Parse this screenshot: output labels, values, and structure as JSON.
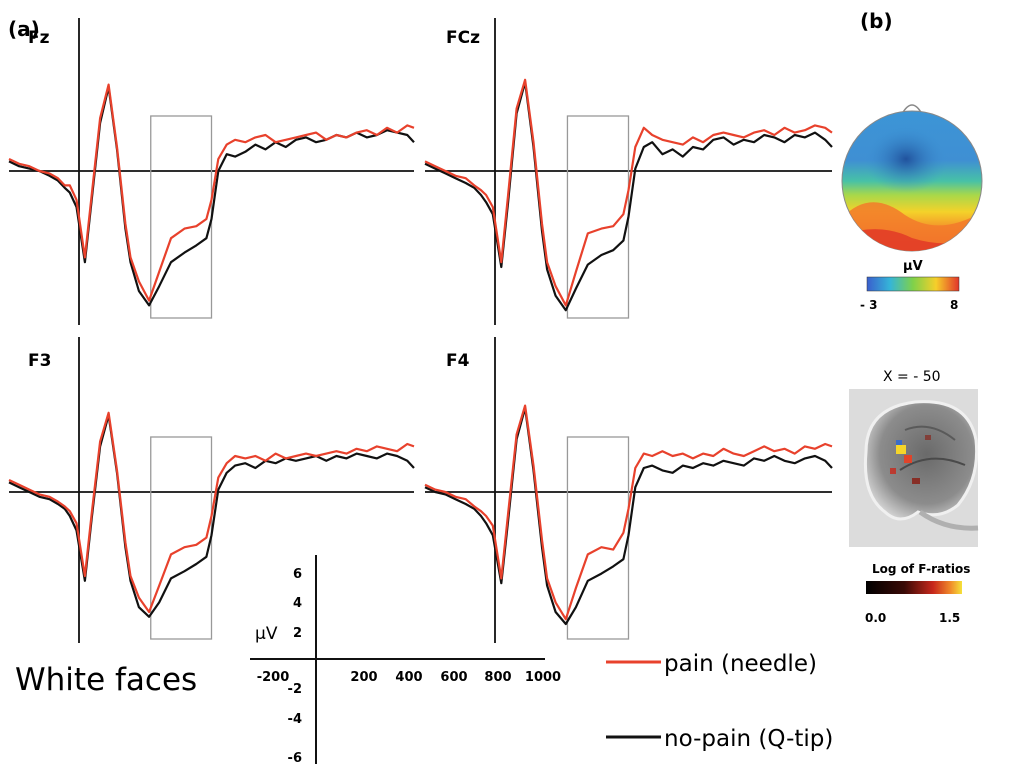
{
  "panel_labels": {
    "a": "(a)",
    "b": "(b)"
  },
  "condition_label": "White faces",
  "chart_data": {
    "type": "line",
    "x_unit": "ms",
    "y_unit": "µV",
    "x_ticks": [
      "-200",
      "200",
      "400",
      "600",
      "800",
      "1000"
    ],
    "y_ticks": [
      "6",
      "4",
      "2",
      "-2",
      "-4",
      "-6"
    ],
    "y_label": "µV",
    "xlim": [
      -200,
      1000
    ],
    "ylim": [
      -6,
      6
    ],
    "window_ms": [
      220,
      400
    ],
    "series": [
      {
        "name": "pain (needle)",
        "color": "#e8412c"
      },
      {
        "name": "no-pain (Q-tip)",
        "color": "#111111"
      }
    ],
    "x": [
      -200,
      -170,
      -140,
      -110,
      -80,
      -55,
      -35,
      -20,
      0,
      25,
      45,
      70,
      95,
      120,
      145,
      160,
      185,
      215,
      245,
      280,
      320,
      355,
      385,
      400,
      420,
      445,
      470,
      500,
      530,
      560,
      590,
      620,
      650,
      680,
      710,
      740,
      770,
      800,
      830,
      860,
      890,
      920,
      950,
      980,
      1000
    ],
    "panels": [
      {
        "electrode": "Fz",
        "pain": [
          0.5,
          0.3,
          0.2,
          0.0,
          -0.1,
          -0.3,
          -0.6,
          -0.6,
          -1.2,
          -3.6,
          -1.0,
          2.2,
          3.6,
          1.0,
          -2.2,
          -3.6,
          -4.6,
          -5.4,
          -4.2,
          -2.8,
          -2.4,
          -2.3,
          -2.0,
          -1.2,
          0.5,
          1.1,
          1.3,
          1.2,
          1.4,
          1.5,
          1.2,
          1.3,
          1.4,
          1.5,
          1.6,
          1.3,
          1.5,
          1.4,
          1.6,
          1.7,
          1.5,
          1.8,
          1.6,
          1.9,
          1.8
        ],
        "nopain": [
          0.4,
          0.2,
          0.1,
          0.0,
          -0.2,
          -0.4,
          -0.7,
          -0.9,
          -1.5,
          -3.8,
          -1.2,
          2.0,
          3.5,
          0.9,
          -2.4,
          -3.8,
          -5.0,
          -5.6,
          -4.8,
          -3.8,
          -3.4,
          -3.1,
          -2.8,
          -2.0,
          0.0,
          0.7,
          0.6,
          0.8,
          1.1,
          0.9,
          1.2,
          1.0,
          1.3,
          1.4,
          1.2,
          1.3,
          1.5,
          1.4,
          1.6,
          1.4,
          1.5,
          1.7,
          1.6,
          1.5,
          1.2
        ]
      },
      {
        "electrode": "FCz",
        "pain": [
          0.4,
          0.2,
          0.0,
          -0.2,
          -0.3,
          -0.6,
          -0.8,
          -1.0,
          -1.5,
          -3.8,
          -1.0,
          2.6,
          3.8,
          1.2,
          -2.2,
          -3.8,
          -4.8,
          -5.6,
          -4.2,
          -2.6,
          -2.4,
          -2.3,
          -1.8,
          -0.8,
          1.0,
          1.8,
          1.5,
          1.3,
          1.2,
          1.1,
          1.4,
          1.2,
          1.5,
          1.6,
          1.5,
          1.4,
          1.6,
          1.7,
          1.5,
          1.8,
          1.6,
          1.7,
          1.9,
          1.8,
          1.6
        ],
        "nopain": [
          0.3,
          0.1,
          -0.1,
          -0.3,
          -0.5,
          -0.7,
          -1.0,
          -1.3,
          -1.8,
          -4.0,
          -1.3,
          2.4,
          3.7,
          1.0,
          -2.5,
          -4.1,
          -5.2,
          -5.8,
          -4.9,
          -3.9,
          -3.5,
          -3.3,
          -2.9,
          -1.9,
          0.1,
          1.0,
          1.2,
          0.7,
          0.9,
          0.6,
          1.0,
          0.9,
          1.3,
          1.4,
          1.1,
          1.3,
          1.2,
          1.5,
          1.4,
          1.2,
          1.5,
          1.4,
          1.6,
          1.3,
          1.0
        ]
      },
      {
        "electrode": "F3",
        "pain": [
          0.5,
          0.3,
          0.1,
          -0.1,
          -0.2,
          -0.4,
          -0.6,
          -0.8,
          -1.3,
          -3.5,
          -0.9,
          2.1,
          3.3,
          0.9,
          -2.1,
          -3.5,
          -4.4,
          -5.0,
          -3.9,
          -2.6,
          -2.3,
          -2.2,
          -1.9,
          -1.0,
          0.6,
          1.2,
          1.5,
          1.4,
          1.5,
          1.3,
          1.6,
          1.4,
          1.5,
          1.6,
          1.5,
          1.6,
          1.7,
          1.6,
          1.8,
          1.7,
          1.9,
          1.8,
          1.7,
          2.0,
          1.9
        ],
        "nopain": [
          0.4,
          0.2,
          0.0,
          -0.2,
          -0.3,
          -0.5,
          -0.7,
          -1.0,
          -1.6,
          -3.7,
          -1.1,
          1.9,
          3.2,
          0.8,
          -2.3,
          -3.7,
          -4.8,
          -5.2,
          -4.6,
          -3.6,
          -3.3,
          -3.0,
          -2.7,
          -1.8,
          0.1,
          0.8,
          1.1,
          1.2,
          1.0,
          1.3,
          1.2,
          1.4,
          1.3,
          1.4,
          1.5,
          1.3,
          1.5,
          1.4,
          1.6,
          1.5,
          1.4,
          1.6,
          1.5,
          1.3,
          1.0
        ]
      },
      {
        "electrode": "F4",
        "pain": [
          0.3,
          0.1,
          0.0,
          -0.2,
          -0.3,
          -0.6,
          -0.8,
          -1.0,
          -1.4,
          -3.6,
          -0.9,
          2.4,
          3.6,
          1.1,
          -2.0,
          -3.6,
          -4.6,
          -5.3,
          -4.0,
          -2.6,
          -2.3,
          -2.4,
          -1.7,
          -0.7,
          1.0,
          1.6,
          1.5,
          1.7,
          1.5,
          1.6,
          1.4,
          1.6,
          1.5,
          1.8,
          1.6,
          1.5,
          1.7,
          1.9,
          1.7,
          1.8,
          1.6,
          1.9,
          1.8,
          2.0,
          1.9
        ],
        "nopain": [
          0.2,
          0.0,
          -0.1,
          -0.3,
          -0.5,
          -0.7,
          -1.0,
          -1.3,
          -1.8,
          -3.8,
          -1.2,
          2.2,
          3.5,
          0.9,
          -2.3,
          -3.9,
          -5.0,
          -5.5,
          -4.8,
          -3.7,
          -3.4,
          -3.1,
          -2.8,
          -1.8,
          0.2,
          1.0,
          1.1,
          0.9,
          0.8,
          1.1,
          1.0,
          1.2,
          1.1,
          1.3,
          1.2,
          1.1,
          1.4,
          1.3,
          1.5,
          1.3,
          1.2,
          1.4,
          1.5,
          1.3,
          1.0
        ]
      }
    ]
  },
  "topomap": {
    "colorbar_label": "µV",
    "min_label": "- 3",
    "max_label": "8",
    "min_value": -3,
    "max_value": 8
  },
  "brain": {
    "title": "X = - 50",
    "colorbar_label": "Log of F-ratios",
    "min_label": "0.0",
    "max_label": "1.5",
    "min_value": 0.0,
    "max_value": 1.5
  }
}
